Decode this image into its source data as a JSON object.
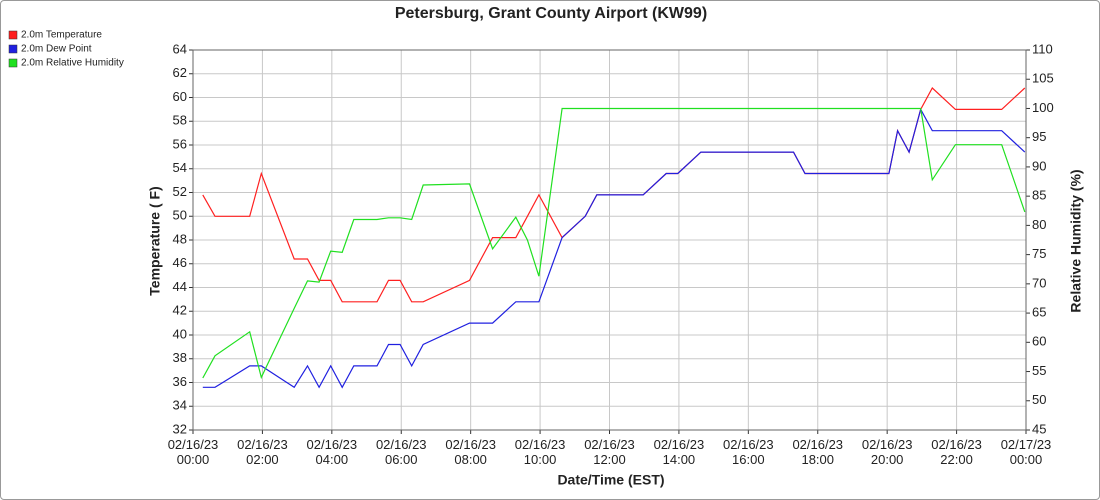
{
  "chart_data": {
    "type": "line",
    "title": "Petersburg, Grant County Airport (KW99)",
    "xlabel": "Date/Time (EST)",
    "ylabel": "Temperature ( F)",
    "y2label": "Relative Humidity (%)",
    "x": [
      "02/16/23 00:17",
      "02/16/23 00:38",
      "02/16/23 01:38",
      "02/16/23 01:58",
      "02/16/23 02:55",
      "02/16/23 03:18",
      "02/16/23 03:38",
      "02/16/23 03:58",
      "02/16/23 04:18",
      "02/16/23 04:38",
      "02/16/23 05:18",
      "02/16/23 05:38",
      "02/16/23 05:58",
      "02/16/23 06:18",
      "02/16/23 06:38",
      "02/16/23 07:58",
      "02/16/23 08:38",
      "02/16/23 09:18",
      "02/16/23 09:38",
      "02/16/23 09:58",
      "02/16/23 10:38",
      "02/16/23 11:18",
      "02/16/23 11:38",
      "02/16/23 12:58",
      "02/16/23 13:38",
      "02/16/23 13:58",
      "02/16/23 14:38",
      "02/16/23 17:18",
      "02/16/23 17:38",
      "02/16/23 20:03",
      "02/16/23 20:18",
      "02/16/23 20:38",
      "02/16/23 20:58",
      "02/16/23 21:18",
      "02/16/23 21:58",
      "02/16/23 23:18",
      "02/16/23 23:58"
    ],
    "series": [
      {
        "name": "2.0m Temperature",
        "color": "#ff2020",
        "values": [
          51.8,
          50,
          50,
          53.6,
          46.4,
          46.4,
          44.6,
          44.6,
          42.8,
          42.8,
          42.8,
          44.6,
          44.6,
          42.8,
          42.8,
          44.6,
          48.2,
          48.2,
          50,
          51.8,
          48.2,
          50,
          51.8,
          51.8,
          53.6,
          53.6,
          55.4,
          55.4,
          53.6,
          53.6,
          57.2,
          55.4,
          59,
          60.8,
          59,
          59,
          60.8
        ]
      },
      {
        "name": "2.0m Dew Point",
        "color": "#2020e0",
        "values": [
          35.6,
          35.6,
          37.4,
          37.4,
          35.6,
          37.4,
          35.6,
          37.4,
          35.6,
          37.4,
          37.4,
          39.2,
          39.2,
          37.4,
          39.2,
          41,
          41,
          42.8,
          42.8,
          42.8,
          48.2,
          50,
          51.8,
          51.8,
          53.6,
          53.6,
          55.4,
          55.4,
          53.6,
          53.6,
          57.2,
          55.4,
          59,
          57.2,
          57.2,
          57.2,
          55.4
        ]
      },
      {
        "name": "2.0m Relative Humidity",
        "color": "#20e020",
        "axis": "y2",
        "values": [
          53.9,
          57.7,
          61.8,
          54,
          65.8,
          70.5,
          70.3,
          75.6,
          75.4,
          81,
          81,
          81.3,
          81.3,
          81,
          86.9,
          87.1,
          76,
          81.4,
          77.5,
          71.3,
          100,
          100,
          100,
          100,
          100,
          100,
          100,
          100,
          100,
          100,
          100,
          100,
          100,
          87.8,
          93.8,
          93.8,
          82.3
        ]
      }
    ],
    "xlim": [
      "02/16/23 00:00",
      "02/17/23 00:00"
    ],
    "xticks": [
      "02/16/23 00:00",
      "02/16/23 02:00",
      "02/16/23 04:00",
      "02/16/23 06:00",
      "02/16/23 08:00",
      "02/16/23 10:00",
      "02/16/23 12:00",
      "02/16/23 14:00",
      "02/16/23 16:00",
      "02/16/23 18:00",
      "02/16/23 20:00",
      "02/16/23 22:00",
      "02/17/23 00:00"
    ],
    "ylim": [
      32,
      64
    ],
    "yticks": [
      32,
      34,
      36,
      38,
      40,
      42,
      44,
      46,
      48,
      50,
      52,
      54,
      56,
      58,
      60,
      62,
      64
    ],
    "y2lim": [
      45,
      110
    ],
    "y2ticks": [
      45,
      50,
      55,
      60,
      65,
      70,
      75,
      80,
      85,
      90,
      95,
      100,
      105,
      110
    ],
    "grid": true,
    "legend": "top-left"
  }
}
